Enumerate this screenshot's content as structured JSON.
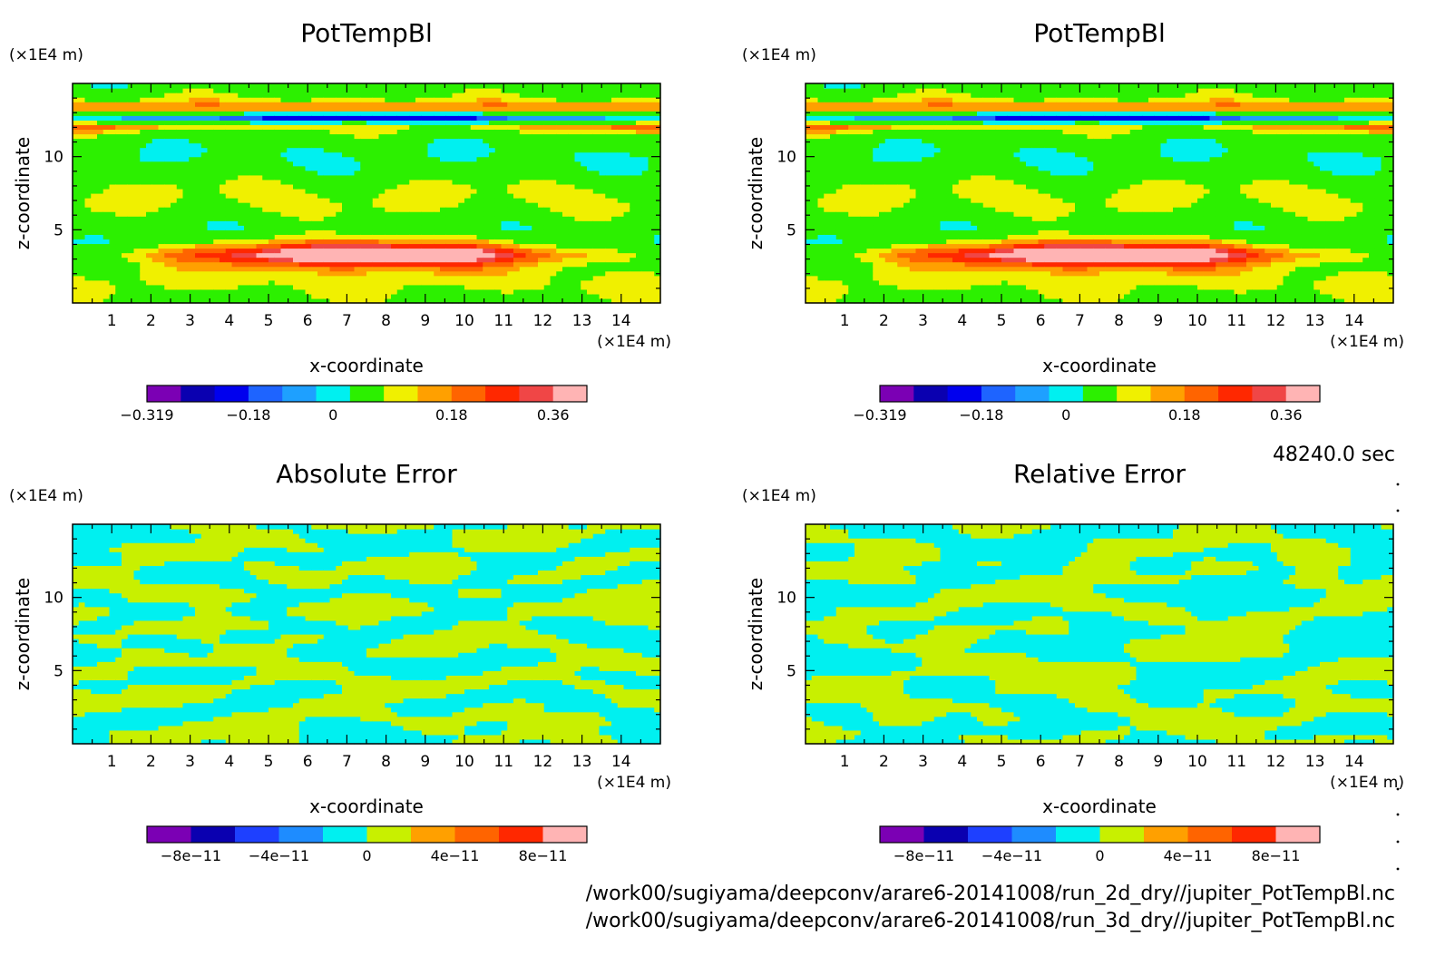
{
  "figure": {
    "time_label": "48240.0 sec",
    "files": [
      "/work00/sugiyama/deepconv/arare6-20141008/run_2d_dry//jupiter_PotTempBl.nc",
      "/work00/sugiyama/deepconv/arare6-20141008/run_3d_dry//jupiter_PotTempBl.nc"
    ]
  },
  "chart_data": [
    {
      "type": "heatmap",
      "title": "PotTempBl",
      "xlabel": "x-coordinate",
      "ylabel": "z-coordinate",
      "x_unit": "(×1E4 m)",
      "y_unit": "(×1E4 m)",
      "xlim": [
        0,
        15
      ],
      "ylim": [
        0,
        15
      ],
      "x_ticks": [
        1,
        2,
        3,
        4,
        5,
        6,
        7,
        8,
        9,
        10,
        11,
        12,
        13,
        14
      ],
      "y_ticks": [
        5,
        10
      ],
      "colorbar": {
        "ticks": [
          "−0.319",
          "−0.18",
          "0",
          "0.18",
          "0.36"
        ],
        "colors": [
          "#7b00b4",
          "#0a00b0",
          "#0000ee",
          "#1e64ff",
          "#1ea0ff",
          "#00f0f0",
          "#2cf000",
          "#f0f000",
          "#ffa000",
          "#ff6400",
          "#ff2800",
          "#f04646",
          "#ffb4b4"
        ]
      },
      "features": [
        {
          "kind": "warm_anomaly",
          "x_center": 7.7,
          "z_center": 3.5,
          "value_max": 0.36
        },
        {
          "kind": "cold_band",
          "z_center": 12.7,
          "value_min": -0.319
        }
      ]
    },
    {
      "type": "heatmap",
      "title": "PotTempBl",
      "xlabel": "x-coordinate",
      "ylabel": "z-coordinate",
      "x_unit": "(×1E4 m)",
      "y_unit": "(×1E4 m)",
      "xlim": [
        0,
        15
      ],
      "ylim": [
        0,
        15
      ],
      "x_ticks": [
        1,
        2,
        3,
        4,
        5,
        6,
        7,
        8,
        9,
        10,
        11,
        12,
        13,
        14
      ],
      "y_ticks": [
        5,
        10
      ],
      "colorbar": {
        "ticks": [
          "−0.319",
          "−0.18",
          "0",
          "0.18",
          "0.36"
        ],
        "colors": [
          "#7b00b4",
          "#0a00b0",
          "#0000ee",
          "#1e64ff",
          "#1ea0ff",
          "#00f0f0",
          "#2cf000",
          "#f0f000",
          "#ffa000",
          "#ff6400",
          "#ff2800",
          "#f04646",
          "#ffb4b4"
        ]
      },
      "features": [
        {
          "kind": "warm_anomaly",
          "x_center": 7.7,
          "z_center": 3.5,
          "value_max": 0.36
        },
        {
          "kind": "cold_band",
          "z_center": 12.7,
          "value_min": -0.319
        }
      ]
    },
    {
      "type": "heatmap",
      "title": "Absolute Error",
      "xlabel": "x-coordinate",
      "ylabel": "z-coordinate",
      "x_unit": "(×1E4 m)",
      "y_unit": "(×1E4 m)",
      "xlim": [
        0,
        15
      ],
      "ylim": [
        0,
        15
      ],
      "x_ticks": [
        1,
        2,
        3,
        4,
        5,
        6,
        7,
        8,
        9,
        10,
        11,
        12,
        13,
        14
      ],
      "y_ticks": [
        5,
        10
      ],
      "colorbar": {
        "ticks": [
          "−8e−11",
          "−4e−11",
          "0",
          "4e−11",
          "8e−11"
        ],
        "colors": [
          "#7b00b4",
          "#0a00b0",
          "#1e40ff",
          "#1e8cff",
          "#00f0f0",
          "#c8f000",
          "#ffa000",
          "#ff6400",
          "#ff2800",
          "#ffb4b4"
        ]
      },
      "pattern": {
        "seed": 3,
        "values": [
          "#00f0f0",
          "#c8f000"
        ]
      }
    },
    {
      "type": "heatmap",
      "title": "Relative Error",
      "xlabel": "x-coordinate",
      "ylabel": "z-coordinate",
      "x_unit": "(×1E4 m)",
      "y_unit": "(×1E4 m)",
      "xlim": [
        0,
        15
      ],
      "ylim": [
        0,
        15
      ],
      "x_ticks": [
        1,
        2,
        3,
        4,
        5,
        6,
        7,
        8,
        9,
        10,
        11,
        12,
        13,
        14
      ],
      "y_ticks": [
        5,
        10
      ],
      "colorbar": {
        "ticks": [
          "−8e−11",
          "−4e−11",
          "0",
          "4e−11",
          "8e−11"
        ],
        "colors": [
          "#7b00b4",
          "#0a00b0",
          "#1e40ff",
          "#1e8cff",
          "#00f0f0",
          "#c8f000",
          "#ffa000",
          "#ff6400",
          "#ff2800",
          "#ffb4b4"
        ]
      },
      "pattern": {
        "seed": 11,
        "values": [
          "#00f0f0",
          "#c8f000"
        ]
      }
    }
  ]
}
